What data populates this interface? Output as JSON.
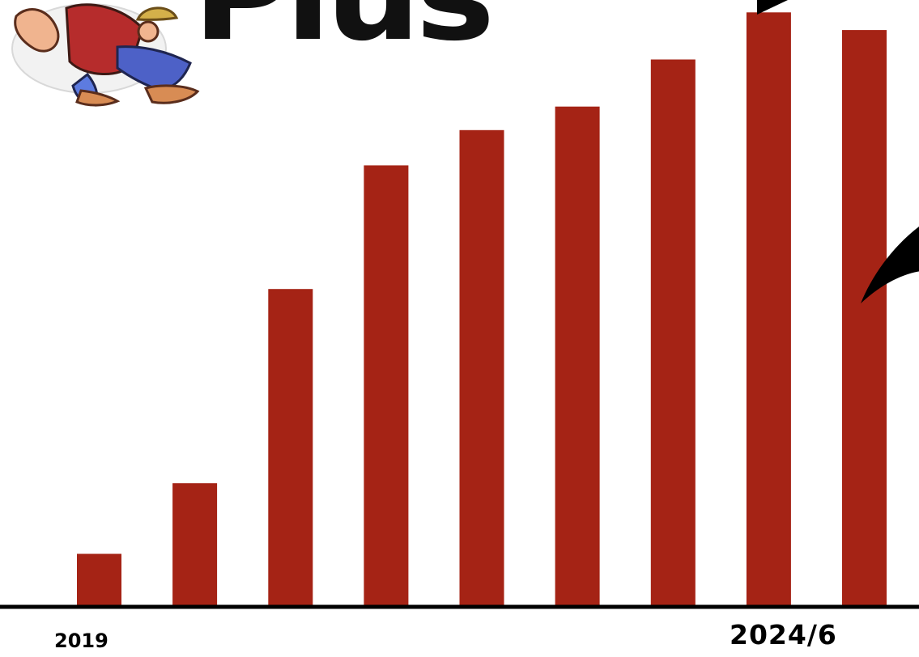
{
  "logo": {
    "text": "Plus"
  },
  "colors": {
    "bar": "#a52315",
    "axis": "#000000",
    "background": "#ffffff"
  },
  "chart_data": {
    "type": "bar",
    "title": "",
    "xlabel": "",
    "ylabel": "",
    "values": [
      9,
      21,
      54,
      75,
      81,
      85,
      93,
      101,
      98
    ],
    "ylim": [
      0,
      102
    ],
    "grid": false,
    "x_axis_labels": {
      "start": "2019",
      "end": "2024/6"
    }
  }
}
